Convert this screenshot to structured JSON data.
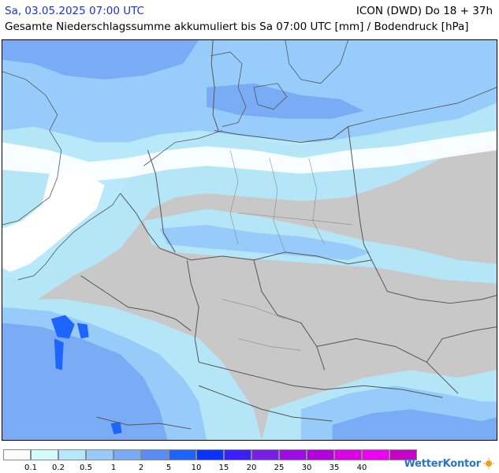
{
  "header": {
    "datetime": "Sa, 03.05.2025 07:00 UTC",
    "model": "ICON (DWD) Do 18 + 37h",
    "subtitle": "Gesamte Niederschlagssumme akkumuliert bis Sa 07:00 UTC [mm] / Bodendruck [hPa]"
  },
  "legend": {
    "colors": [
      "#ffffff",
      "#d4fafc",
      "#b4e8fa",
      "#96cafa",
      "#78aaf5",
      "#5a8cf5",
      "#1e64ff",
      "#0a32ff",
      "#3c1eff",
      "#781ee6",
      "#a00ae6",
      "#b400dc",
      "#dc00e6",
      "#f000f0",
      "#c800c8"
    ],
    "ticks": [
      "0.1",
      "0.2",
      "0.5",
      "1",
      "2",
      "5",
      "10",
      "15",
      "20",
      "25",
      "30",
      "35",
      "40"
    ]
  },
  "logo": {
    "text": "WetterKontor"
  },
  "map": {
    "land_color": "#c8c8c8",
    "sea_color": "#ffffff",
    "light_precip": "#b4e8fa",
    "mid_precip": "#96cafa",
    "heavy_precip": "#78aaf5",
    "very_heavy_precip": "#1e64ff",
    "border_color": "#555555"
  }
}
